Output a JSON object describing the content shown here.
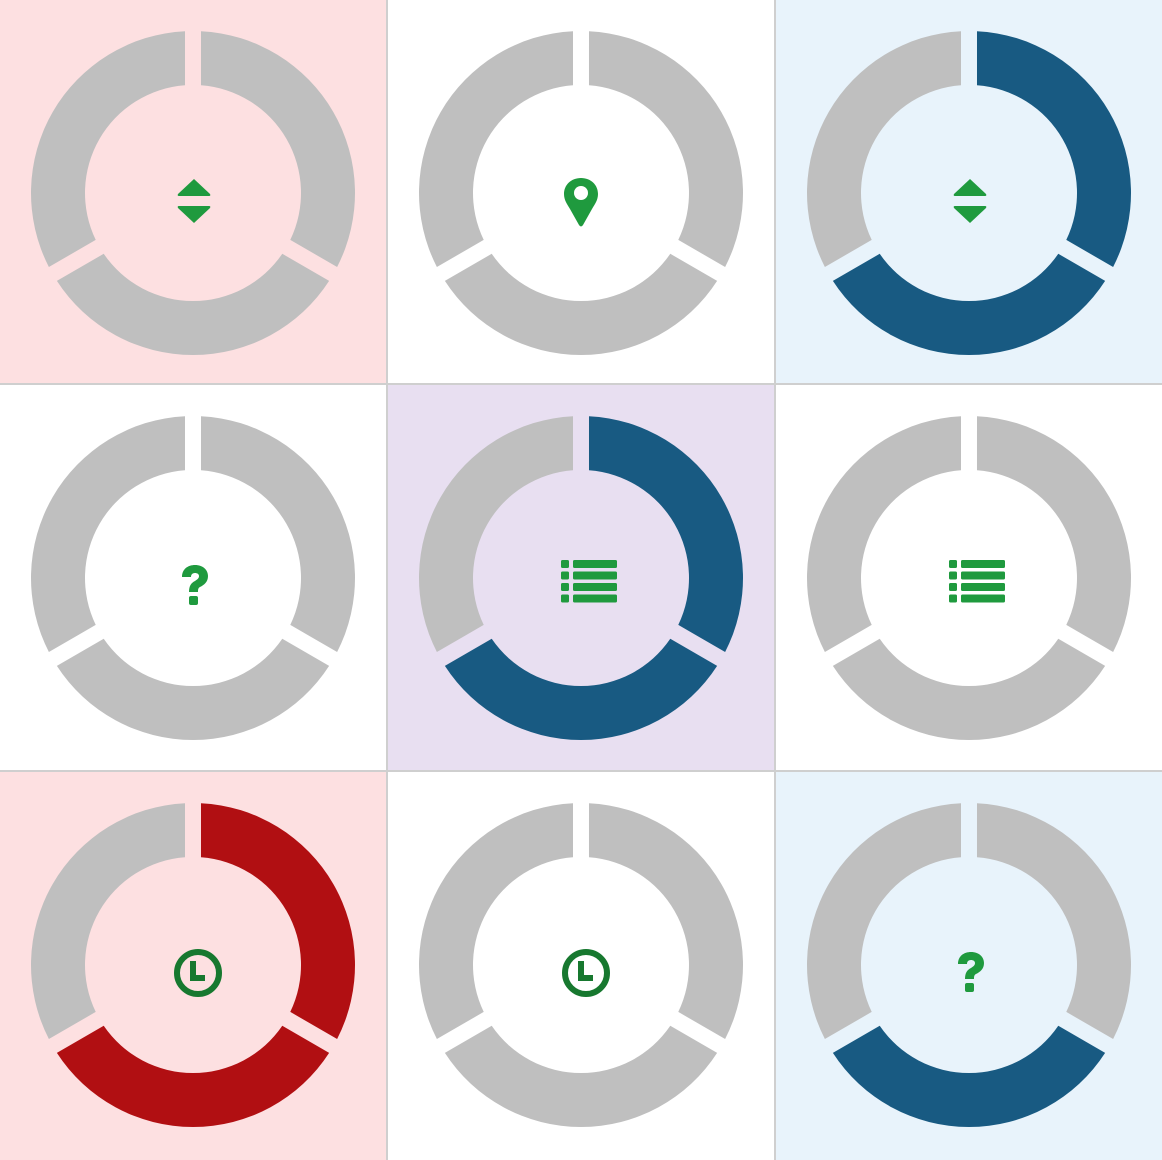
{
  "colors": {
    "inactive_segment": "#bfbfbf",
    "blue_segment": "#185a82",
    "red_segment": "#b10f12",
    "icon_green": "#1f9a3e",
    "icon_dark_green": "#17782f",
    "bg_pink": "#fde0e1",
    "bg_lavender": "#e8dff1",
    "bg_light_blue": "#e8f3fb",
    "bg_white": "#ffffff",
    "divider": "#cfcfcf"
  },
  "tiles": [
    {
      "id": "tile-1",
      "background": "pink",
      "icon": "sort-icon",
      "segments": [
        "off",
        "off",
        "off"
      ],
      "active_color": "blue"
    },
    {
      "id": "tile-2",
      "background": "white",
      "icon": "map-pin-icon",
      "segments": [
        "off",
        "off",
        "off"
      ],
      "active_color": "blue"
    },
    {
      "id": "tile-3",
      "background": "light_blue",
      "icon": "sort-icon",
      "segments": [
        "on",
        "on",
        "off"
      ],
      "active_color": "blue"
    },
    {
      "id": "tile-4",
      "background": "white",
      "icon": "question-mark-icon",
      "segments": [
        "off",
        "off",
        "off"
      ],
      "active_color": "blue"
    },
    {
      "id": "tile-5",
      "background": "lavender",
      "icon": "list-icon",
      "segments": [
        "on",
        "on",
        "off"
      ],
      "active_color": "blue"
    },
    {
      "id": "tile-6",
      "background": "white",
      "icon": "list-icon",
      "segments": [
        "off",
        "off",
        "off"
      ],
      "active_color": "blue"
    },
    {
      "id": "tile-7",
      "background": "pink",
      "icon": "clock-icon",
      "segments": [
        "on",
        "on",
        "off"
      ],
      "active_color": "red"
    },
    {
      "id": "tile-8",
      "background": "white",
      "icon": "clock-icon",
      "segments": [
        "off",
        "off",
        "off"
      ],
      "active_color": "blue"
    },
    {
      "id": "tile-9",
      "background": "light_blue",
      "icon": "question-mark-icon",
      "segments": [
        "off",
        "on",
        "off"
      ],
      "active_color": "blue"
    }
  ]
}
